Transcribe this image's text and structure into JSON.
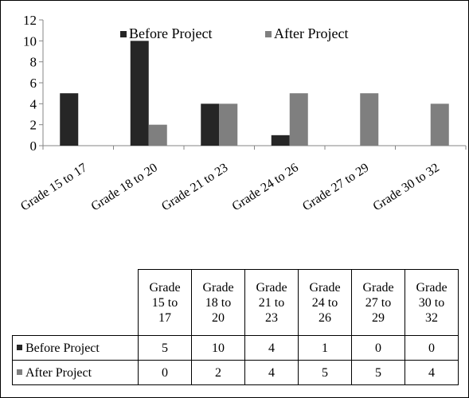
{
  "chart_data": {
    "type": "bar",
    "categories": [
      "Grade 15 to 17",
      "Grade 18 to 20",
      "Grade 21 to 23",
      "Grade 24 to 26",
      "Grade 27 to 29",
      "Grade 30 to 32"
    ],
    "series": [
      {
        "name": "Before Project",
        "values": [
          5,
          10,
          4,
          1,
          0,
          0
        ],
        "color": "#262626"
      },
      {
        "name": "After Project",
        "values": [
          0,
          2,
          4,
          5,
          5,
          4
        ],
        "color": "#7f7f7f"
      }
    ],
    "ylim": [
      0,
      12
    ],
    "yticks": [
      0,
      2,
      4,
      6,
      8,
      10,
      12
    ],
    "legend_position": "top",
    "grid": false
  },
  "table": {
    "header_lines": [
      [
        "Grade",
        "15 to",
        "17"
      ],
      [
        "Grade",
        "18 to",
        "20"
      ],
      [
        "Grade",
        "21 to",
        "23"
      ],
      [
        "Grade",
        "24 to",
        "26"
      ],
      [
        "Grade",
        "27 to",
        "29"
      ],
      [
        "Grade",
        "30 to",
        "32"
      ]
    ]
  }
}
